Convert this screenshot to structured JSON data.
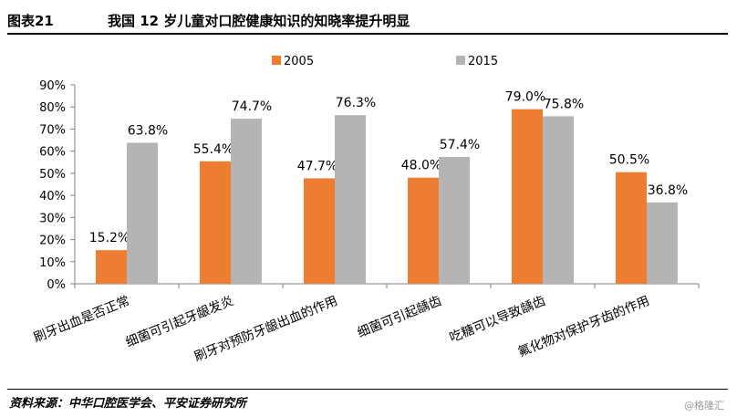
{
  "figure": {
    "number": "图表21",
    "title": "我国 12 岁儿童对口腔健康知识的知晓率提升明显"
  },
  "source": "资料来源：中华口腔医学会、平安证券研究所",
  "watermark": "@格隆汇",
  "colors": {
    "s2005": "#ED7D31",
    "s2015": "#B4B4B4",
    "axis": "#808080",
    "text": "#000000"
  },
  "chart_data": {
    "type": "bar",
    "title": "我国 12 岁儿童对口腔健康知识的知晓率提升明显",
    "categories": [
      "刷牙出血是否正常",
      "细菌可引起牙龈发炎",
      "刷牙对预防牙龈出血的作用",
      "细菌可引起龋齿",
      "吃糖可以导致龋齿",
      "氟化物对保护牙齿的作用"
    ],
    "series": [
      {
        "name": "2005",
        "values": [
          15.2,
          55.4,
          47.7,
          48.0,
          79.0,
          50.5
        ],
        "labels": [
          "15.2%",
          "55.4%",
          "47.7%",
          "48.0%",
          "79.0%",
          "50.5%"
        ]
      },
      {
        "name": "2015",
        "values": [
          63.8,
          74.7,
          76.3,
          57.4,
          75.8,
          36.8
        ],
        "labels": [
          "63.8%",
          "74.7%",
          "76.3%",
          "57.4%",
          "75.8%",
          "36.8%"
        ]
      }
    ],
    "ylim": [
      0,
      90
    ],
    "yticks": [
      0,
      10,
      20,
      30,
      40,
      50,
      60,
      70,
      80,
      90
    ],
    "ytick_labels": [
      "0%",
      "10%",
      "20%",
      "30%",
      "40%",
      "50%",
      "60%",
      "70%",
      "80%",
      "90%"
    ],
    "xlabel": "",
    "ylabel": "",
    "legend": "top-center",
    "grid": false
  }
}
